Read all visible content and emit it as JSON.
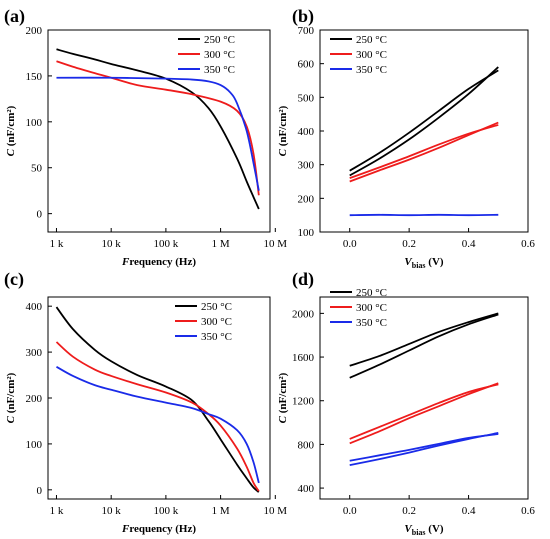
{
  "chart_data": [
    {
      "panel": "(a)",
      "type": "line",
      "xlabel": "Frequency (Hz)",
      "ylabel": "C (nF/cm²)",
      "xscale": "log",
      "xlim": [
        700,
        8000000
      ],
      "ylim": [
        -20,
        200
      ],
      "xticks": [
        1000,
        10000,
        100000,
        1000000,
        10000000
      ],
      "xtick_labels": [
        "1 k",
        "10 k",
        "100 k",
        "1 M",
        "10 M"
      ],
      "yticks": [
        0,
        50,
        100,
        150,
        200
      ],
      "legend_position": "top-right",
      "series": [
        {
          "name": "250 °C",
          "color": "#000000",
          "x": [
            1000,
            2000,
            5000,
            10000,
            30000,
            100000,
            300000,
            600000,
            1000000,
            2000000,
            3000000,
            4000000,
            5000000
          ],
          "y": [
            179,
            174,
            168,
            163,
            156,
            147,
            132,
            115,
            95,
            60,
            35,
            18,
            5
          ]
        },
        {
          "name": "300 °C",
          "color": "#ee1c1c",
          "x": [
            1000,
            2000,
            5000,
            10000,
            30000,
            100000,
            300000,
            1000000,
            2000000,
            3000000,
            4000000,
            5000000
          ],
          "y": [
            166,
            160,
            153,
            148,
            140,
            135,
            130,
            122,
            112,
            95,
            65,
            20
          ]
        },
        {
          "name": "350 °C",
          "color": "#1a2be8",
          "x": [
            1000,
            10000,
            100000,
            300000,
            600000,
            1000000,
            1500000,
            2000000,
            3000000,
            4000000,
            5000000
          ],
          "y": [
            148,
            148,
            147,
            146,
            144,
            140,
            132,
            120,
            90,
            55,
            25
          ]
        }
      ]
    },
    {
      "panel": "(b)",
      "type": "line",
      "xlabel": "V_bias (V)",
      "ylabel": "C (nF/cm²)",
      "xlim": [
        -0.1,
        0.6
      ],
      "ylim": [
        100,
        700
      ],
      "xticks": [
        0.0,
        0.2,
        0.4,
        0.6
      ],
      "xtick_labels": [
        "0.0",
        "0.2",
        "0.4",
        "0.6"
      ],
      "yticks": [
        100,
        200,
        300,
        400,
        500,
        600,
        700
      ],
      "legend_position": "top-left",
      "series": [
        {
          "name": "250 °C",
          "color": "#000000",
          "x": [
            0.0,
            0.1,
            0.2,
            0.3,
            0.4,
            0.5
          ],
          "y": [
            268,
            318,
            375,
            440,
            510,
            590
          ]
        },
        {
          "name": "",
          "color": "#000000",
          "x": [
            0.0,
            0.1,
            0.2,
            0.3,
            0.4,
            0.5
          ],
          "y": [
            282,
            335,
            395,
            460,
            525,
            580
          ]
        },
        {
          "name": "300 °C",
          "color": "#ee1c1c",
          "x": [
            0.0,
            0.1,
            0.2,
            0.3,
            0.4,
            0.5
          ],
          "y": [
            250,
            283,
            315,
            350,
            388,
            425
          ]
        },
        {
          "name": "",
          "color": "#ee1c1c",
          "x": [
            0.0,
            0.1,
            0.2,
            0.3,
            0.4,
            0.5
          ],
          "y": [
            260,
            292,
            325,
            360,
            392,
            418
          ]
        },
        {
          "name": "350 °C",
          "color": "#1a2be8",
          "x": [
            0.0,
            0.1,
            0.2,
            0.3,
            0.4,
            0.5
          ],
          "y": [
            150,
            151,
            150,
            151,
            150,
            151
          ]
        }
      ]
    },
    {
      "panel": "(c)",
      "type": "line",
      "xlabel": "Frequency (Hz)",
      "ylabel": "C (nF/cm²)",
      "xscale": "log",
      "xlim": [
        700,
        8000000
      ],
      "ylim": [
        -20,
        420
      ],
      "xticks": [
        1000,
        10000,
        100000,
        1000000,
        10000000
      ],
      "xtick_labels": [
        "1 k",
        "10 k",
        "100 k",
        "1 M",
        "10 M"
      ],
      "yticks": [
        0,
        100,
        200,
        300,
        400
      ],
      "legend_position": "top-right",
      "series": [
        {
          "name": "250 °C",
          "color": "#000000",
          "x": [
            1000,
            2000,
            5000,
            10000,
            30000,
            100000,
            300000,
            600000,
            1000000,
            2000000,
            3000000,
            4000000,
            5000000
          ],
          "y": [
            398,
            350,
            305,
            280,
            250,
            225,
            195,
            150,
            110,
            55,
            25,
            5,
            -5
          ]
        },
        {
          "name": "300 °C",
          "color": "#ee1c1c",
          "x": [
            1000,
            2000,
            5000,
            10000,
            30000,
            100000,
            300000,
            600000,
            1000000,
            2000000,
            3000000,
            4000000,
            5000000
          ],
          "y": [
            322,
            290,
            262,
            248,
            230,
            212,
            190,
            165,
            140,
            90,
            50,
            15,
            -3
          ]
        },
        {
          "name": "350 °C",
          "color": "#1a2be8",
          "x": [
            1000,
            2000,
            5000,
            10000,
            30000,
            100000,
            300000,
            600000,
            1000000,
            2000000,
            3000000,
            4000000,
            5000000
          ],
          "y": [
            268,
            248,
            228,
            218,
            203,
            190,
            178,
            165,
            155,
            130,
            100,
            60,
            15
          ]
        }
      ]
    },
    {
      "panel": "(d)",
      "type": "line",
      "xlabel": "V_bias (V)",
      "ylabel": "C (nF/cm²)",
      "xlim": [
        -0.1,
        0.6
      ],
      "ylim": [
        300,
        2150
      ],
      "xticks": [
        0.0,
        0.2,
        0.4,
        0.6
      ],
      "xtick_labels": [
        "0.0",
        "0.2",
        "0.4",
        "0.6"
      ],
      "yticks": [
        400,
        800,
        1200,
        1600,
        2000
      ],
      "legend_position": "top-left",
      "series": [
        {
          "name": "250 °C",
          "color": "#000000",
          "x": [
            0.0,
            0.1,
            0.2,
            0.3,
            0.4,
            0.5
          ],
          "y": [
            1410,
            1530,
            1660,
            1790,
            1900,
            1990
          ]
        },
        {
          "name": "",
          "color": "#000000",
          "x": [
            0.0,
            0.1,
            0.2,
            0.3,
            0.4,
            0.5
          ],
          "y": [
            1520,
            1610,
            1720,
            1830,
            1920,
            2000
          ]
        },
        {
          "name": "300 °C",
          "color": "#ee1c1c",
          "x": [
            0.0,
            0.1,
            0.2,
            0.3,
            0.4,
            0.5
          ],
          "y": [
            810,
            920,
            1040,
            1150,
            1260,
            1360
          ]
        },
        {
          "name": "",
          "color": "#ee1c1c",
          "x": [
            0.0,
            0.1,
            0.2,
            0.3,
            0.4,
            0.5
          ],
          "y": [
            850,
            960,
            1070,
            1180,
            1280,
            1350
          ]
        },
        {
          "name": "350 °C",
          "color": "#1a2be8",
          "x": [
            0.0,
            0.1,
            0.2,
            0.3,
            0.4,
            0.5
          ],
          "y": [
            610,
            665,
            725,
            790,
            850,
            905
          ]
        },
        {
          "name": "",
          "color": "#1a2be8",
          "x": [
            0.0,
            0.1,
            0.2,
            0.3,
            0.4,
            0.5
          ],
          "y": [
            650,
            700,
            750,
            805,
            860,
            895
          ]
        }
      ]
    }
  ]
}
